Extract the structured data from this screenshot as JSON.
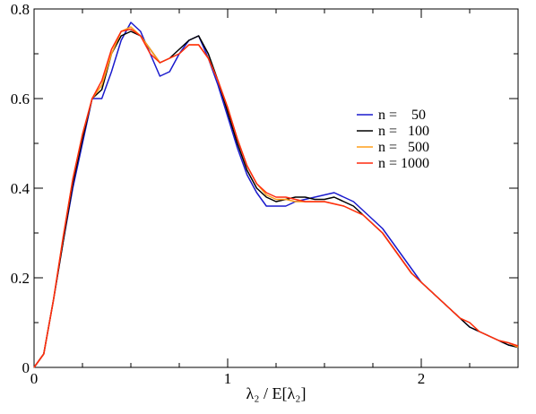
{
  "chart_data": {
    "type": "line",
    "title": "",
    "xlabel": "λ₂ / E[λ₂]",
    "ylabel": "",
    "xlim": [
      0,
      2.5
    ],
    "ylim": [
      0,
      0.8
    ],
    "xticks": [
      0,
      1,
      2
    ],
    "xtick_labels": [
      "0",
      "1",
      "2"
    ],
    "yticks": [
      0,
      0.2,
      0.4,
      0.6,
      0.8
    ],
    "ytick_labels": [
      "0",
      "0.2",
      "0.4",
      "0.6",
      "0.8"
    ],
    "grid": false,
    "legend_position": "right-center",
    "x": [
      0,
      0.05,
      0.1,
      0.15,
      0.2,
      0.25,
      0.3,
      0.35,
      0.4,
      0.45,
      0.5,
      0.55,
      0.6,
      0.65,
      0.7,
      0.75,
      0.8,
      0.85,
      0.9,
      0.95,
      1.0,
      1.05,
      1.1,
      1.15,
      1.2,
      1.25,
      1.3,
      1.35,
      1.4,
      1.45,
      1.5,
      1.55,
      1.6,
      1.65,
      1.7,
      1.75,
      1.8,
      1.85,
      1.9,
      1.95,
      2.0,
      2.05,
      2.1,
      2.15,
      2.2,
      2.25,
      2.3,
      2.35,
      2.4,
      2.45,
      2.5
    ],
    "series": [
      {
        "name": "n =    50",
        "color": "#1a1acd",
        "values": [
          0.0,
          0.03,
          0.15,
          0.28,
          0.4,
          0.5,
          0.6,
          0.6,
          0.66,
          0.73,
          0.77,
          0.75,
          0.7,
          0.65,
          0.66,
          0.7,
          0.73,
          0.74,
          0.69,
          0.63,
          0.56,
          0.49,
          0.43,
          0.39,
          0.36,
          0.36,
          0.36,
          0.37,
          0.375,
          0.38,
          0.385,
          0.39,
          0.38,
          0.37,
          0.35,
          0.33,
          0.31,
          0.28,
          0.25,
          0.22,
          0.19,
          0.17,
          0.15,
          0.13,
          0.11,
          0.09,
          0.08,
          0.07,
          0.06,
          0.05,
          0.045
        ]
      },
      {
        "name": "n =   100",
        "color": "#000000",
        "values": [
          0.0,
          0.03,
          0.15,
          0.28,
          0.41,
          0.51,
          0.6,
          0.62,
          0.7,
          0.74,
          0.75,
          0.74,
          0.71,
          0.68,
          0.69,
          0.71,
          0.73,
          0.74,
          0.7,
          0.64,
          0.57,
          0.5,
          0.44,
          0.4,
          0.38,
          0.37,
          0.375,
          0.38,
          0.38,
          0.375,
          0.375,
          0.38,
          0.37,
          0.36,
          0.34,
          0.32,
          0.3,
          0.27,
          0.24,
          0.21,
          0.19,
          0.17,
          0.15,
          0.13,
          0.11,
          0.09,
          0.08,
          0.07,
          0.06,
          0.05,
          0.045
        ]
      },
      {
        "name": "n =   500",
        "color": "#ff9f1a",
        "values": [
          0.0,
          0.03,
          0.15,
          0.29,
          0.42,
          0.52,
          0.6,
          0.63,
          0.7,
          0.75,
          0.76,
          0.74,
          0.71,
          0.68,
          0.69,
          0.7,
          0.72,
          0.72,
          0.69,
          0.64,
          0.58,
          0.51,
          0.45,
          0.41,
          0.385,
          0.375,
          0.375,
          0.37,
          0.37,
          0.37,
          0.37,
          0.365,
          0.36,
          0.35,
          0.34,
          0.32,
          0.3,
          0.27,
          0.24,
          0.21,
          0.19,
          0.17,
          0.15,
          0.13,
          0.11,
          0.1,
          0.08,
          0.07,
          0.06,
          0.055,
          0.045
        ]
      },
      {
        "name": "n = 1000",
        "color": "#ff2a0f",
        "values": [
          0.0,
          0.03,
          0.15,
          0.29,
          0.42,
          0.52,
          0.6,
          0.64,
          0.71,
          0.75,
          0.755,
          0.74,
          0.7,
          0.68,
          0.69,
          0.7,
          0.72,
          0.72,
          0.69,
          0.64,
          0.58,
          0.51,
          0.45,
          0.41,
          0.39,
          0.38,
          0.38,
          0.375,
          0.37,
          0.37,
          0.37,
          0.365,
          0.36,
          0.35,
          0.34,
          0.32,
          0.3,
          0.27,
          0.24,
          0.21,
          0.19,
          0.17,
          0.15,
          0.13,
          0.11,
          0.1,
          0.08,
          0.07,
          0.06,
          0.055,
          0.048
        ]
      }
    ]
  }
}
